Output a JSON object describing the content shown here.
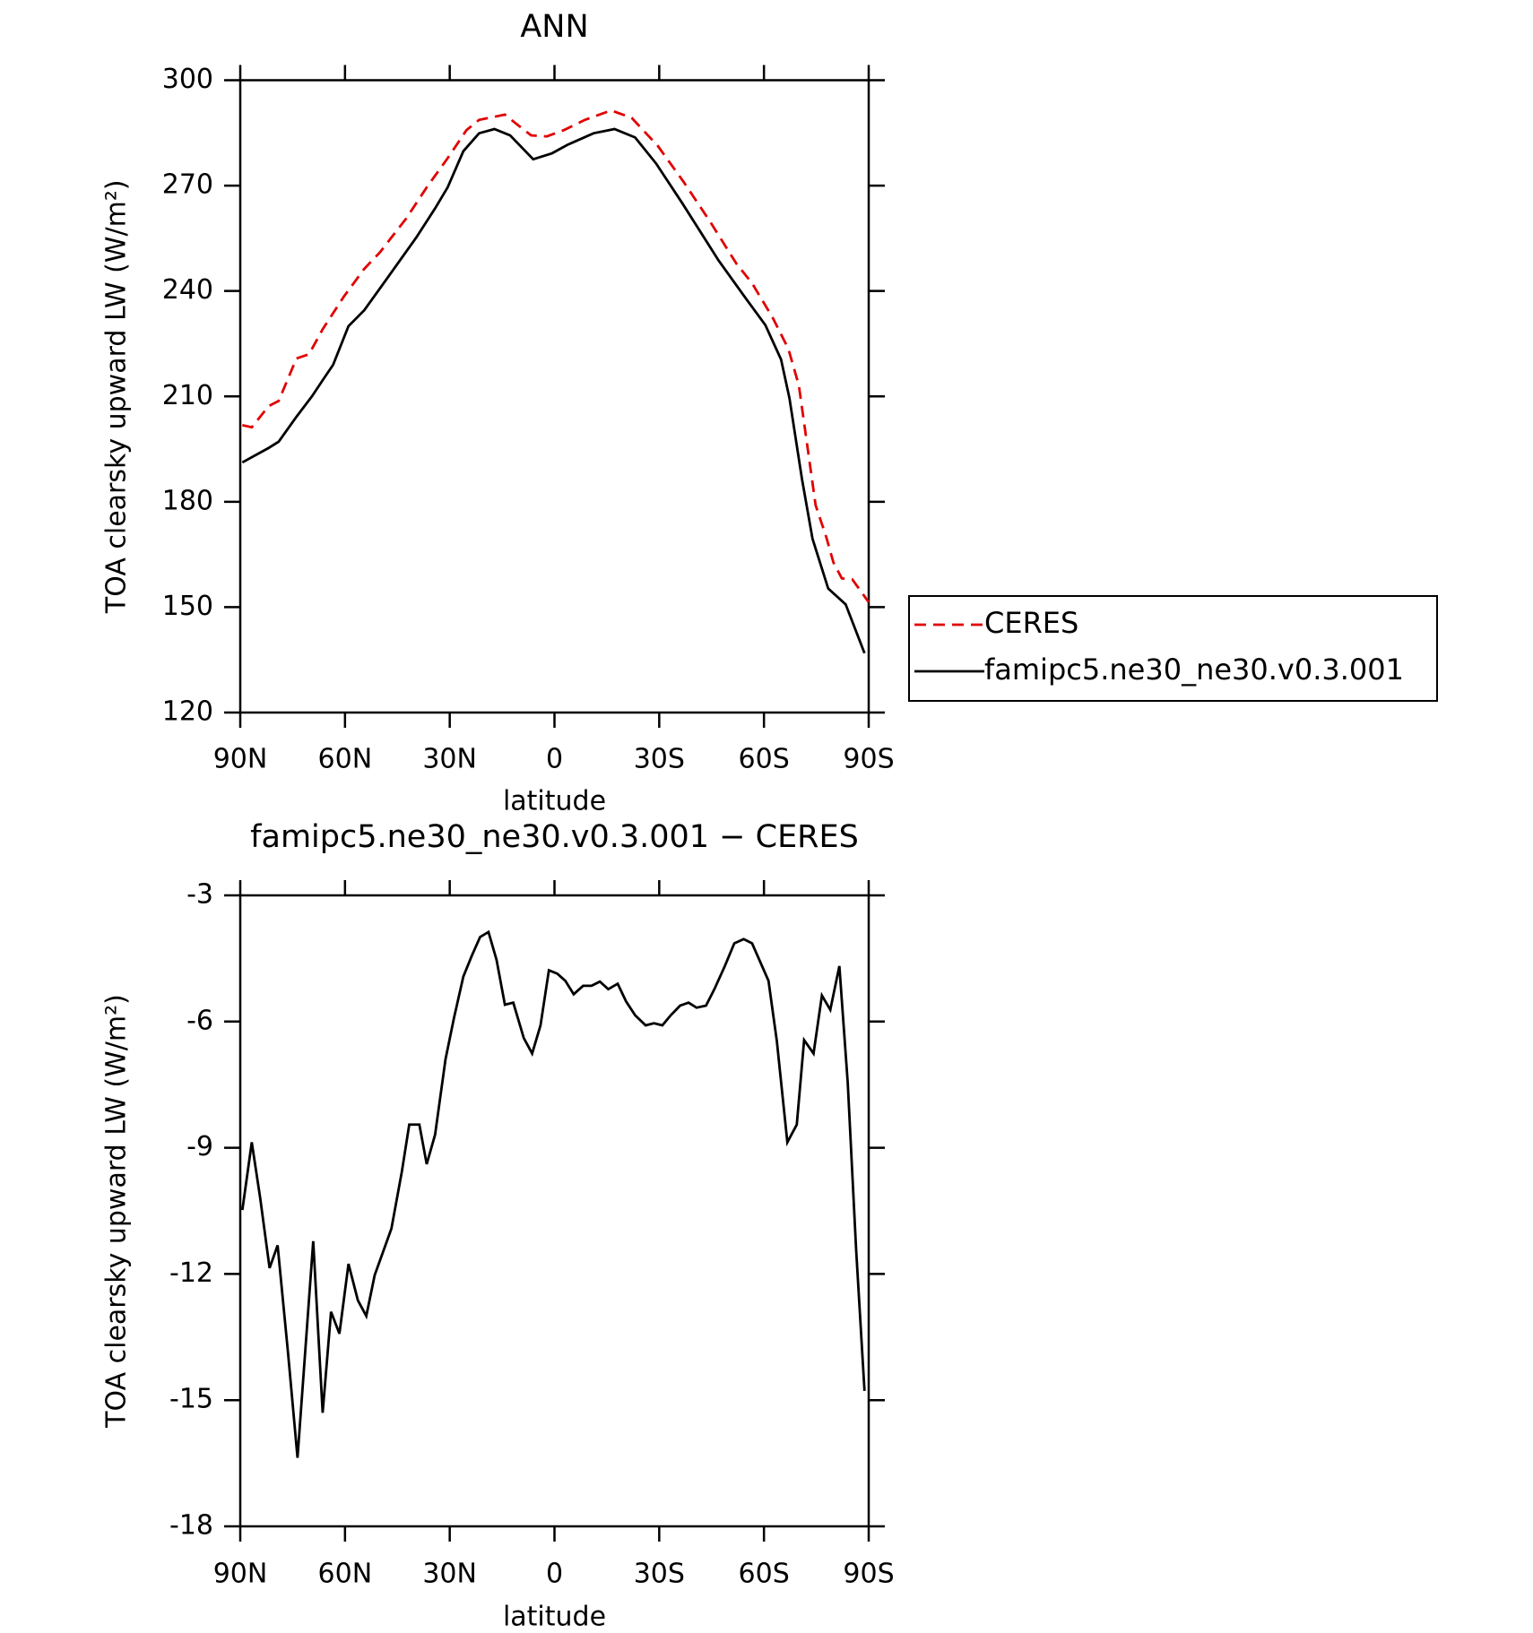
{
  "chart_data": [
    {
      "type": "line",
      "title": "ANN",
      "xlabel": "latitude",
      "ylabel": "TOA clearsky upward LW (W/m²)",
      "xlim": [
        90,
        -90
      ],
      "xticks": [
        {
          "value": 90,
          "label": "90N"
        },
        {
          "value": 60,
          "label": "60N"
        },
        {
          "value": 30,
          "label": "30N"
        },
        0,
        {
          "value": -30,
          "label": "30S"
        },
        {
          "value": -60,
          "label": "60S"
        },
        {
          "value": -90,
          "label": "90S"
        }
      ],
      "ylim": [
        120,
        300
      ],
      "yticks": [
        120,
        150,
        180,
        210,
        240,
        270,
        300
      ],
      "legend": "right",
      "series": [
        {
          "name": "CERES",
          "color": "#e00000",
          "dash": true,
          "x": [
            89.4,
            86.7,
            81.9,
            79,
            73.9,
            70.3,
            66.4,
            60.4,
            54.5,
            50,
            42.5,
            36.6,
            30.6,
            25.2,
            21.6,
            14.2,
            11.2,
            6.7,
            2.2,
            -2.7,
            -8.7,
            -16.2,
            -22.1,
            -29.6,
            -37.1,
            -44.6,
            -52.1,
            -56.6,
            -62.5,
            -67,
            -70,
            -74.8,
            -77.8,
            -79.9,
            -82.3,
            -85.3,
            -90
          ],
          "values": [
            201.8,
            201.2,
            207.2,
            208.7,
            220.8,
            222,
            229.1,
            238.3,
            246.3,
            251,
            260.6,
            269.5,
            277.8,
            285.8,
            288.7,
            290.2,
            287.8,
            284.3,
            284,
            285.8,
            288.7,
            291.4,
            289.3,
            281.3,
            270.9,
            259.7,
            247.8,
            242.2,
            232.4,
            223.5,
            213.1,
            179,
            170.1,
            162.7,
            158.2,
            157.9,
            151.4
          ]
        },
        {
          "name": "famipc5.ne30_ne30.v0.3.001",
          "color": "#000000",
          "dash": false,
          "x": [
            89.4,
            81.9,
            79,
            73.9,
            69.4,
            66.4,
            63.4,
            59,
            54.5,
            48.5,
            39.6,
            34.2,
            30.6,
            26.1,
            21.6,
            17.2,
            12.7,
            6.1,
            0.7,
            -3.7,
            -11.2,
            -17.2,
            -23.1,
            -29.1,
            -36.6,
            -47,
            -54.5,
            -60.4,
            -64.9,
            -67.3,
            -70.9,
            -73.9,
            -78.4,
            -83.4,
            -88.8
          ],
          "values": [
            191.2,
            195.3,
            197.1,
            204.2,
            210.1,
            214.6,
            219,
            230,
            234.5,
            242.8,
            255.2,
            263.5,
            269.5,
            279.8,
            284.9,
            286.1,
            284.3,
            277.5,
            279.2,
            281.6,
            284.9,
            286.1,
            283.7,
            276.3,
            265,
            248.7,
            238.3,
            230.3,
            220.5,
            209.5,
            186.4,
            169.5,
            155.3,
            150.8,
            136.9
          ]
        }
      ]
    },
    {
      "type": "line",
      "title": "famipc5.ne30_ne30.v0.3.001 − CERES",
      "xlabel": "latitude",
      "ylabel": "TOA clearsky upward LW (W/m²)",
      "xlim": [
        90,
        -90
      ],
      "xticks": [
        {
          "value": 90,
          "label": "90N"
        },
        {
          "value": 60,
          "label": "60N"
        },
        {
          "value": 30,
          "label": "30N"
        },
        0,
        {
          "value": -30,
          "label": "30S"
        },
        {
          "value": -60,
          "label": "60S"
        },
        {
          "value": -90,
          "label": "90S"
        }
      ],
      "ylim": [
        -18,
        -3
      ],
      "yticks": [
        -18,
        -15,
        -12,
        -9,
        -6,
        -3
      ],
      "series": [
        {
          "color": "#000000",
          "dash": false,
          "x": [
            89.4,
            86.7,
            84.3,
            81.6,
            79.3,
            76.3,
            73.6,
            69.1,
            66.4,
            64,
            61.6,
            59,
            56.3,
            53.9,
            51.5,
            46.7,
            43.7,
            41.6,
            38.7,
            36.6,
            34.2,
            31.2,
            28.8,
            26.1,
            23.7,
            21.3,
            18.9,
            16.6,
            14.2,
            11.8,
            8.8,
            6.4,
            4,
            1.6,
            -0.8,
            -3.1,
            -5.5,
            -8.2,
            -10.6,
            -13,
            -15.4,
            -18.1,
            -20.5,
            -23.1,
            -26.1,
            -28.5,
            -30.9,
            -33.3,
            -36,
            -38.4,
            -40.7,
            -43.4,
            -45.8,
            -48.8,
            -51.5,
            -54.2,
            -56.6,
            -61.3,
            -63.7,
            -66.7,
            -69.4,
            -71.5,
            -74.2,
            -76.6,
            -79,
            -81.6,
            -84,
            -86.4,
            -88.8
          ],
          "values": [
            -10.48,
            -8.87,
            -10.19,
            -11.86,
            -11.32,
            -13.89,
            -16.37,
            -11.22,
            -15.3,
            -12.9,
            -13.42,
            -11.76,
            -12.63,
            -13,
            -12.03,
            -10.92,
            -9.56,
            -8.45,
            -8.45,
            -9.39,
            -8.69,
            -6.89,
            -5.92,
            -4.93,
            -4.44,
            -3.99,
            -3.87,
            -4.53,
            -5.6,
            -5.55,
            -6.39,
            -6.76,
            -6.09,
            -4.78,
            -4.86,
            -5.03,
            -5.35,
            -5.15,
            -5.15,
            -5.05,
            -5.23,
            -5.1,
            -5.52,
            -5.85,
            -6.09,
            -6.04,
            -6.09,
            -5.85,
            -5.62,
            -5.55,
            -5.67,
            -5.62,
            -5.23,
            -4.68,
            -4.14,
            -4.04,
            -4.14,
            -5.03,
            -6.47,
            -8.87,
            -8.45,
            -6.44,
            -6.76,
            -5.38,
            -5.72,
            -4.68,
            -7.46,
            -11.42,
            -14.78
          ]
        }
      ]
    }
  ]
}
